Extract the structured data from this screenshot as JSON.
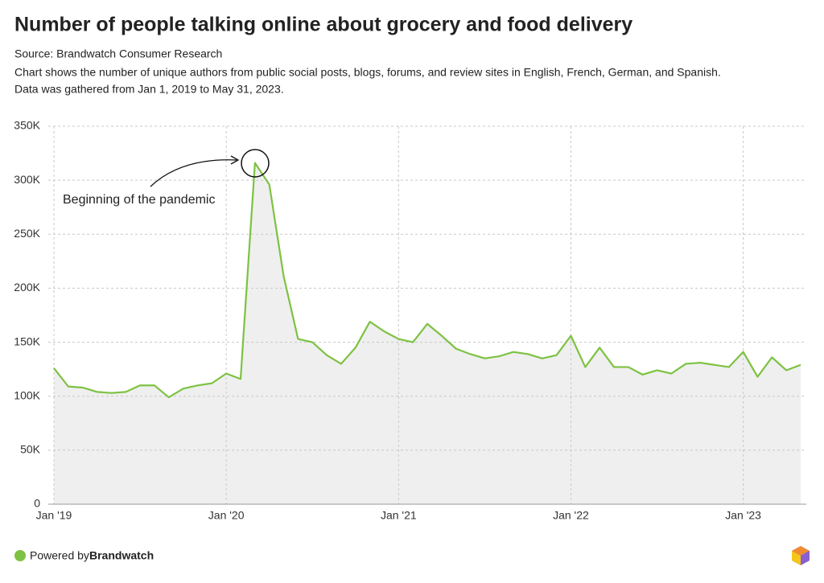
{
  "chart_data": {
    "type": "line",
    "title": "Number of people talking online about grocery and food delivery",
    "subtitle": [
      "Source: Brandwatch Consumer Research",
      "Chart shows the number of unique authors from public social posts, blogs, forums, and review sites in English, French, German, and Spanish.",
      "Data was gathered from Jan 1, 2019 to May 31, 2023."
    ],
    "annotation": "Beginning of the pandemic",
    "x": [
      "2019-01",
      "2019-02",
      "2019-03",
      "2019-04",
      "2019-05",
      "2019-06",
      "2019-07",
      "2019-08",
      "2019-09",
      "2019-10",
      "2019-11",
      "2019-12",
      "2020-01",
      "2020-02",
      "2020-03",
      "2020-04",
      "2020-05",
      "2020-06",
      "2020-07",
      "2020-08",
      "2020-09",
      "2020-10",
      "2020-11",
      "2020-12",
      "2021-01",
      "2021-02",
      "2021-03",
      "2021-04",
      "2021-05",
      "2021-06",
      "2021-07",
      "2021-08",
      "2021-09",
      "2021-10",
      "2021-11",
      "2021-12",
      "2022-01",
      "2022-02",
      "2022-03",
      "2022-04",
      "2022-05",
      "2022-06",
      "2022-07",
      "2022-08",
      "2022-09",
      "2022-10",
      "2022-11",
      "2022-12",
      "2023-01",
      "2023-02",
      "2023-03",
      "2023-04",
      "2023-05"
    ],
    "series": [
      {
        "color": "#7dc242",
        "area_color": "#efefef",
        "values": [
          126000,
          109000,
          108000,
          104000,
          103000,
          104000,
          110000,
          110000,
          99000,
          107000,
          110000,
          112000,
          121000,
          116000,
          316000,
          296000,
          211000,
          153000,
          150000,
          138000,
          130000,
          145000,
          169000,
          160000,
          153000,
          150000,
          167000,
          156000,
          144000,
          139000,
          135000,
          137000,
          141000,
          139000,
          135000,
          138000,
          156000,
          127000,
          145000,
          127000,
          127000,
          120000,
          124000,
          121000,
          130000,
          131000,
          129000,
          127000,
          141000,
          118000,
          136000,
          124000,
          129000
        ]
      }
    ],
    "xlim": [
      "2019-01",
      "2023-05"
    ],
    "xticks": [
      {
        "value": "2019-01",
        "label": "Jan '19"
      },
      {
        "value": "2020-01",
        "label": "Jan '20"
      },
      {
        "value": "2021-01",
        "label": "Jan '21"
      },
      {
        "value": "2022-01",
        "label": "Jan '22"
      },
      {
        "value": "2023-01",
        "label": "Jan '23"
      }
    ],
    "ylim": [
      0,
      350000
    ],
    "yticks": [
      0,
      {
        "value": 50000,
        "label": "50K"
      },
      {
        "value": 100000,
        "label": "100K"
      },
      {
        "value": 150000,
        "label": "150K"
      },
      {
        "value": 200000,
        "label": "200K"
      },
      {
        "value": 250000,
        "label": "250K"
      },
      {
        "value": 300000,
        "label": "300K"
      },
      {
        "value": 350000,
        "label": "350K"
      }
    ],
    "grid": true
  },
  "footer": {
    "prefix": "Powered by",
    "brand": "Brandwatch"
  }
}
